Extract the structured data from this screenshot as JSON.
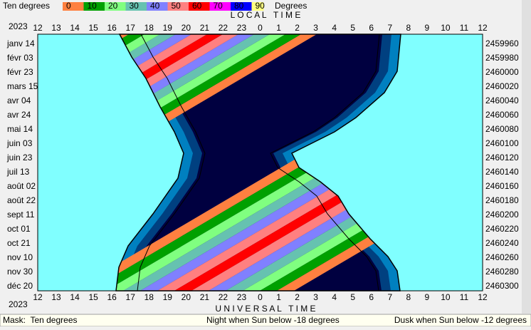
{
  "header": {
    "mask_label": "Ten degrees",
    "legend_values": [
      0,
      10,
      20,
      30,
      40,
      50,
      60,
      70,
      80,
      90
    ],
    "legend_unit": "Degrees"
  },
  "plot": {
    "top_title": "L O C A L   T I M E",
    "bottom_title": "U N I V E R S A L   T I M E",
    "year_top": "2023",
    "year_bottom": "2023",
    "local_hours": [
      12,
      13,
      14,
      15,
      16,
      17,
      18,
      19,
      20,
      21,
      22,
      23,
      0,
      1,
      2,
      3,
      4,
      5,
      6,
      7,
      8,
      9,
      10,
      11,
      12
    ],
    "ut_hours": [
      12,
      13,
      14,
      15,
      16,
      17,
      18,
      19,
      20,
      21,
      22,
      23,
      0,
      1,
      2,
      3,
      4,
      5,
      6,
      7,
      8,
      9,
      10,
      11,
      12
    ],
    "dates": [
      "janv 14",
      "févr 03",
      "févr 23",
      "mars 15",
      "avr 04",
      "avr 24",
      "mai 14",
      "juin 03",
      "juin 23",
      "juil 13",
      "août 02",
      "août 22",
      "sept 11",
      "oct 01",
      "oct 21",
      "nov 10",
      "nov 30",
      "déc 20"
    ],
    "julian_days": [
      2459960,
      2459980,
      2460000,
      2460020,
      2460040,
      2460060,
      2460080,
      2460100,
      2460120,
      2460140,
      2460160,
      2460180,
      2460200,
      2460220,
      2460240,
      2460260,
      2460280,
      2460300
    ]
  },
  "status": {
    "mask": "Mask:  Ten degrees",
    "night": "Night when Sun below -18 degrees",
    "dusk": "Dusk when Sun below -12 degrees"
  }
}
